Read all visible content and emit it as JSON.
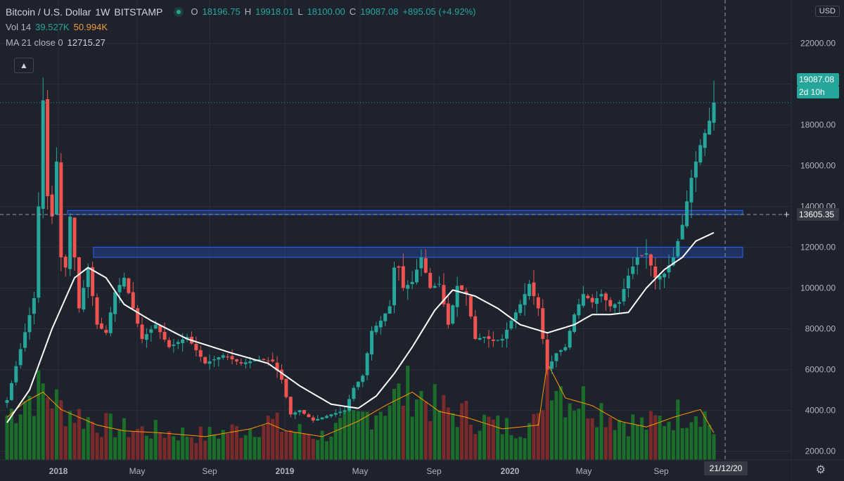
{
  "header": {
    "symbol": "Bitcoin / U.S. Dollar",
    "interval": "1W",
    "exchange": "BITSTAMP",
    "o_label": "O",
    "o_value": "18196.75",
    "h_label": "H",
    "h_value": "19918.01",
    "l_label": "L",
    "l_value": "18100.00",
    "c_label": "C",
    "c_value": "19087.08",
    "change": "+895.05 (+4.92%)",
    "vol_label": "Vol 14",
    "vol_value1": "39.527K",
    "vol_value2": "50.994K",
    "ma_label": "MA 21 close 0",
    "ma_value": "12715.27",
    "collapse_icon": "▲",
    "currency": "USD"
  },
  "chart_data": {
    "type": "candlestick",
    "y_ticks": [
      2000,
      4000,
      6000,
      8000,
      10000,
      12000,
      14000,
      16000,
      18000,
      20000,
      22000
    ],
    "y_tick_labels": [
      "2000.00",
      "4000.00",
      "6000.00",
      "8000.00",
      "10000.00",
      "12000.00",
      "14000.00",
      "16000.00",
      "18000.00",
      "20000.00",
      "22000.00"
    ],
    "x_labels": [
      "2018",
      "May",
      "Sep",
      "2019",
      "May",
      "Sep",
      "2020",
      "May",
      "Sep"
    ],
    "colors": {
      "up": "#26a69a",
      "down": "#ef5350",
      "ma": "#ffffff",
      "vol_up": "#1b6e2a",
      "vol_down": "#7a2a2a",
      "vol_ma": "#ff9800",
      "zone": "#2962ff"
    },
    "last_price": "19087.08",
    "countdown": "2d 10h",
    "crosshair_price": "13605.35",
    "crosshair_date": "21/12/20",
    "zones": [
      {
        "from": 13600,
        "to": 13800
      },
      {
        "from": 11500,
        "to": 12000
      }
    ],
    "weekly_close_anchors": [
      [
        0,
        4500
      ],
      [
        3,
        7000
      ],
      [
        6,
        9500
      ],
      [
        7,
        14000
      ],
      [
        8,
        19200
      ],
      [
        9,
        14500
      ],
      [
        10,
        13500
      ],
      [
        11,
        16200
      ],
      [
        12,
        11500
      ],
      [
        13,
        11000
      ],
      [
        14,
        13500
      ],
      [
        15,
        11500
      ],
      [
        16,
        9000
      ],
      [
        18,
        11000
      ],
      [
        20,
        8200
      ],
      [
        22,
        7800
      ],
      [
        24,
        9800
      ],
      [
        26,
        10500
      ],
      [
        28,
        9000
      ],
      [
        30,
        7500
      ],
      [
        33,
        8200
      ],
      [
        36,
        7100
      ],
      [
        40,
        7600
      ],
      [
        44,
        6300
      ],
      [
        48,
        6700
      ],
      [
        52,
        6300
      ],
      [
        56,
        6500
      ],
      [
        59,
        6400
      ],
      [
        61,
        5500
      ],
      [
        63,
        3800
      ],
      [
        65,
        4000
      ],
      [
        68,
        3500
      ],
      [
        72,
        3800
      ],
      [
        75,
        4000
      ],
      [
        77,
        5100
      ],
      [
        79,
        5700
      ],
      [
        81,
        7900
      ],
      [
        83,
        8400
      ],
      [
        85,
        9100
      ],
      [
        86,
        11000
      ],
      [
        87,
        11000
      ],
      [
        88,
        10000
      ],
      [
        90,
        10300
      ],
      [
        92,
        11500
      ],
      [
        94,
        10000
      ],
      [
        96,
        10200
      ],
      [
        98,
        8200
      ],
      [
        100,
        10100
      ],
      [
        102,
        9700
      ],
      [
        104,
        7500
      ],
      [
        106,
        7600
      ],
      [
        108,
        7400
      ],
      [
        110,
        7500
      ],
      [
        112,
        8400
      ],
      [
        114,
        9200
      ],
      [
        116,
        10200
      ],
      [
        118,
        9000
      ],
      [
        120,
        6000
      ],
      [
        122,
        6800
      ],
      [
        124,
        7100
      ],
      [
        126,
        8700
      ],
      [
        128,
        9700
      ],
      [
        130,
        9300
      ],
      [
        132,
        9700
      ],
      [
        134,
        9100
      ],
      [
        136,
        9300
      ],
      [
        138,
        10600
      ],
      [
        140,
        11500
      ],
      [
        142,
        11700
      ],
      [
        144,
        10500
      ],
      [
        146,
        10700
      ],
      [
        148,
        11500
      ],
      [
        150,
        13100
      ],
      [
        152,
        15400
      ],
      [
        154,
        17000
      ],
      [
        156,
        18200
      ],
      [
        157,
        19087
      ]
    ],
    "ma_anchors": [
      [
        0,
        3400
      ],
      [
        5,
        5000
      ],
      [
        10,
        8000
      ],
      [
        15,
        10500
      ],
      [
        18,
        11000
      ],
      [
        22,
        10500
      ],
      [
        26,
        9200
      ],
      [
        32,
        8400
      ],
      [
        40,
        7500
      ],
      [
        50,
        6800
      ],
      [
        58,
        6300
      ],
      [
        65,
        5200
      ],
      [
        72,
        4300
      ],
      [
        78,
        4100
      ],
      [
        82,
        4700
      ],
      [
        86,
        5800
      ],
      [
        90,
        7100
      ],
      [
        95,
        8900
      ],
      [
        99,
        9900
      ],
      [
        104,
        9600
      ],
      [
        109,
        9000
      ],
      [
        114,
        8200
      ],
      [
        120,
        7800
      ],
      [
        126,
        8200
      ],
      [
        130,
        8700
      ],
      [
        134,
        8700
      ],
      [
        138,
        8800
      ],
      [
        142,
        10000
      ],
      [
        146,
        10900
      ],
      [
        150,
        11500
      ],
      [
        153,
        12300
      ],
      [
        157,
        12715
      ]
    ],
    "volume_anchors": [
      [
        0,
        2200
      ],
      [
        4,
        3000
      ],
      [
        8,
        3500
      ],
      [
        12,
        2600
      ],
      [
        16,
        2200
      ],
      [
        20,
        1800
      ],
      [
        26,
        1500
      ],
      [
        34,
        1400
      ],
      [
        44,
        1200
      ],
      [
        54,
        1600
      ],
      [
        58,
        1900
      ],
      [
        62,
        1500
      ],
      [
        70,
        1200
      ],
      [
        78,
        2000
      ],
      [
        84,
        2800
      ],
      [
        90,
        3500
      ],
      [
        96,
        2500
      ],
      [
        102,
        2200
      ],
      [
        110,
        1600
      ],
      [
        118,
        1800
      ],
      [
        120,
        5000
      ],
      [
        124,
        3200
      ],
      [
        130,
        2800
      ],
      [
        136,
        2000
      ],
      [
        142,
        1700
      ],
      [
        148,
        2200
      ],
      [
        154,
        2600
      ],
      [
        157,
        1400
      ]
    ]
  }
}
